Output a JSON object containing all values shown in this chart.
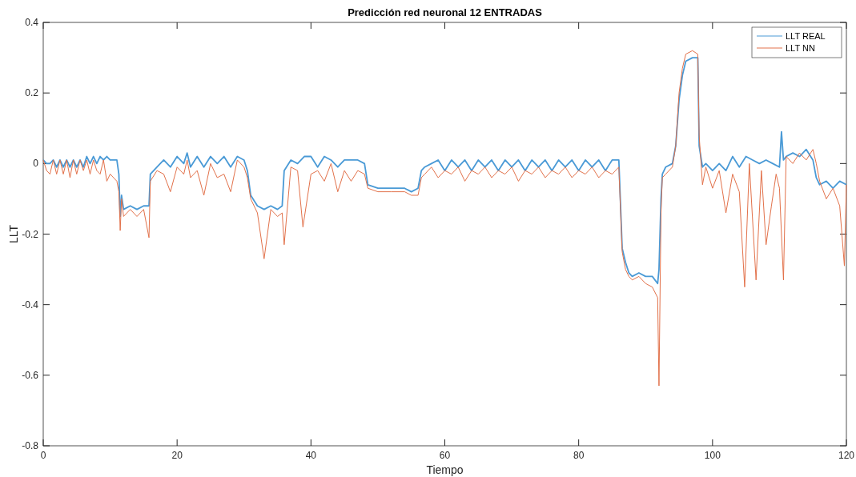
{
  "chart_data": {
    "type": "line",
    "title": "Predicción red neuronal 12 ENTRADAS",
    "xlabel": "Tiempo",
    "ylabel": "LLT",
    "xlim": [
      0,
      120
    ],
    "ylim": [
      -0.8,
      0.4
    ],
    "xticks": [
      0,
      20,
      40,
      60,
      80,
      100,
      120
    ],
    "yticks": [
      -0.8,
      -0.6,
      -0.4,
      -0.2,
      0,
      0.2,
      0.4
    ],
    "legend": "top right",
    "line_style": "solid",
    "series": [
      {
        "name": "LLT REAL",
        "color": "#4a9ad6",
        "x": [
          0,
          0.5,
          1,
          1.5,
          2,
          2.5,
          3,
          3.5,
          4,
          4.5,
          5,
          5.5,
          6,
          6.5,
          7,
          7.5,
          8,
          8.5,
          9,
          9.5,
          10,
          11,
          11.3,
          11.5,
          11.7,
          12,
          13,
          14,
          15,
          15.8,
          16,
          17,
          18,
          19,
          20,
          21,
          21.5,
          22,
          23,
          24,
          25,
          26,
          27,
          28,
          29,
          30,
          30.5,
          31,
          32,
          33,
          34,
          35,
          35.7,
          36,
          37,
          38,
          39,
          40,
          41,
          42,
          43,
          44,
          45,
          46,
          47,
          48,
          48.5,
          50,
          52,
          54,
          55,
          56,
          56.5,
          57,
          58,
          59,
          60,
          61,
          62,
          63,
          64,
          65,
          66,
          67,
          68,
          69,
          70,
          71,
          72,
          73,
          74,
          75,
          76,
          77,
          78,
          79,
          80,
          81,
          82,
          83,
          84,
          85,
          86,
          86.5,
          87,
          87.5,
          88,
          89,
          90,
          91,
          91.8,
          92,
          92.3,
          92.5,
          93,
          94,
          94.5,
          95,
          95.5,
          96,
          97,
          97.8,
          98,
          98.5,
          99,
          100,
          101,
          102,
          103,
          104,
          105,
          106,
          107,
          108,
          109,
          110,
          110.3,
          110.6,
          111,
          112,
          113,
          114,
          115,
          115.5,
          116,
          117,
          118,
          119,
          120
        ],
        "values": [
          0.01,
          0,
          0,
          0.01,
          -0.01,
          0.01,
          -0.01,
          0.01,
          -0.01,
          0.01,
          -0.01,
          0.01,
          -0.01,
          0.02,
          0,
          0.02,
          0,
          0.02,
          0.01,
          0.02,
          0.01,
          0.01,
          -0.03,
          -0.15,
          -0.09,
          -0.13,
          -0.12,
          -0.13,
          -0.12,
          -0.12,
          -0.03,
          -0.01,
          0.01,
          -0.01,
          0.02,
          0,
          0.03,
          -0.01,
          0.02,
          -0.01,
          0.02,
          0,
          0.02,
          -0.01,
          0.02,
          0.01,
          -0.02,
          -0.09,
          -0.12,
          -0.13,
          -0.12,
          -0.13,
          -0.12,
          -0.02,
          0.01,
          0,
          0.02,
          0.02,
          -0.01,
          0.02,
          0.01,
          -0.01,
          0.01,
          0.01,
          0.01,
          0,
          -0.06,
          -0.07,
          -0.07,
          -0.07,
          -0.08,
          -0.07,
          -0.02,
          -0.01,
          0,
          0.01,
          -0.02,
          0.01,
          -0.01,
          0.01,
          -0.02,
          0.01,
          -0.01,
          0.01,
          -0.02,
          0.01,
          -0.01,
          0.01,
          -0.02,
          0.01,
          -0.01,
          0.01,
          -0.02,
          0.01,
          -0.01,
          0.01,
          -0.02,
          0.01,
          -0.01,
          0.01,
          -0.02,
          0.01,
          0.01,
          -0.24,
          -0.28,
          -0.31,
          -0.32,
          -0.31,
          -0.32,
          -0.32,
          -0.34,
          -0.3,
          -0.1,
          -0.03,
          -0.01,
          0,
          0.05,
          0.18,
          0.25,
          0.29,
          0.3,
          0.3,
          0.05,
          -0.01,
          0,
          -0.02,
          0,
          -0.02,
          0.02,
          -0.01,
          0.02,
          0.01,
          0,
          0.01,
          0,
          -0.01,
          0.09,
          0.01,
          0.02,
          0.03,
          0.02,
          0.04,
          0.01,
          -0.04,
          -0.06,
          -0.05,
          -0.07,
          -0.05,
          -0.06
        ]
      },
      {
        "name": "LLT NN",
        "color": "#e2714a",
        "x": [
          0,
          0.5,
          1,
          1.5,
          2,
          2.5,
          3,
          3.5,
          4,
          4.5,
          5,
          5.5,
          6,
          6.5,
          7,
          7.5,
          8,
          8.5,
          9,
          9.5,
          10,
          11,
          11.3,
          11.5,
          11.7,
          12,
          13,
          14,
          15,
          15.8,
          16,
          17,
          18,
          19,
          20,
          21,
          21.5,
          22,
          23,
          24,
          25,
          26,
          27,
          28,
          29,
          30,
          30.5,
          31,
          32,
          33,
          34,
          35,
          35.7,
          36,
          37,
          38,
          38.8,
          40,
          41,
          42,
          43,
          44,
          45,
          46,
          47,
          48,
          48.5,
          50,
          52,
          54,
          55,
          56,
          56.5,
          57,
          58,
          59,
          60,
          61,
          62,
          63,
          64,
          65,
          66,
          67,
          68,
          69,
          70,
          71,
          72,
          73,
          74,
          75,
          76,
          77,
          78,
          79,
          80,
          81,
          82,
          83,
          84,
          85,
          86,
          86.5,
          87,
          87.5,
          88,
          89,
          90,
          91,
          91.8,
          92,
          92.3,
          92.5,
          93,
          94,
          94.5,
          95,
          95.5,
          96,
          97,
          97.8,
          98,
          98.5,
          99,
          100,
          101,
          102,
          103,
          104,
          104.8,
          105.5,
          106.5,
          107.3,
          108,
          108.8,
          109.5,
          110,
          110.6,
          111,
          112,
          113,
          114,
          115,
          115.5,
          116,
          117,
          118,
          119,
          119.7,
          120
        ],
        "values": [
          0.01,
          -0.02,
          -0.03,
          0.01,
          -0.03,
          0.01,
          -0.03,
          0.01,
          -0.04,
          0.01,
          -0.03,
          0.01,
          -0.02,
          0.01,
          -0.03,
          0.01,
          -0.02,
          -0.03,
          0.01,
          -0.05,
          -0.03,
          -0.05,
          -0.08,
          -0.19,
          -0.1,
          -0.15,
          -0.13,
          -0.15,
          -0.13,
          -0.21,
          -0.05,
          -0.02,
          -0.03,
          -0.08,
          -0.01,
          -0.03,
          0.01,
          -0.04,
          -0.02,
          -0.09,
          0,
          -0.04,
          -0.03,
          -0.08,
          0.01,
          -0.01,
          -0.04,
          -0.1,
          -0.14,
          -0.27,
          -0.13,
          -0.15,
          -0.14,
          -0.23,
          -0.01,
          -0.02,
          -0.18,
          -0.03,
          -0.02,
          -0.05,
          0,
          -0.08,
          -0.02,
          -0.05,
          -0.02,
          -0.03,
          -0.07,
          -0.08,
          -0.08,
          -0.08,
          -0.09,
          -0.09,
          -0.04,
          -0.03,
          -0.01,
          -0.04,
          -0.02,
          -0.03,
          -0.01,
          -0.05,
          -0.02,
          -0.03,
          -0.01,
          -0.04,
          -0.02,
          -0.03,
          -0.01,
          -0.05,
          -0.02,
          -0.03,
          -0.01,
          -0.04,
          -0.02,
          -0.03,
          -0.01,
          -0.04,
          -0.02,
          -0.03,
          -0.01,
          -0.04,
          -0.02,
          -0.03,
          -0.01,
          -0.25,
          -0.3,
          -0.32,
          -0.33,
          -0.32,
          -0.34,
          -0.35,
          -0.38,
          -0.63,
          -0.14,
          -0.04,
          -0.03,
          -0.01,
          0.05,
          0.2,
          0.27,
          0.31,
          0.32,
          0.31,
          0.08,
          -0.06,
          -0.01,
          -0.07,
          -0.02,
          -0.14,
          -0.03,
          -0.08,
          -0.35,
          0,
          -0.33,
          -0.02,
          -0.23,
          -0.12,
          -0.03,
          -0.07,
          -0.33,
          0.02,
          0,
          0.03,
          0.01,
          0.04,
          0,
          -0.05,
          -0.1,
          -0.07,
          -0.12,
          -0.29,
          -0.06
        ]
      }
    ]
  }
}
